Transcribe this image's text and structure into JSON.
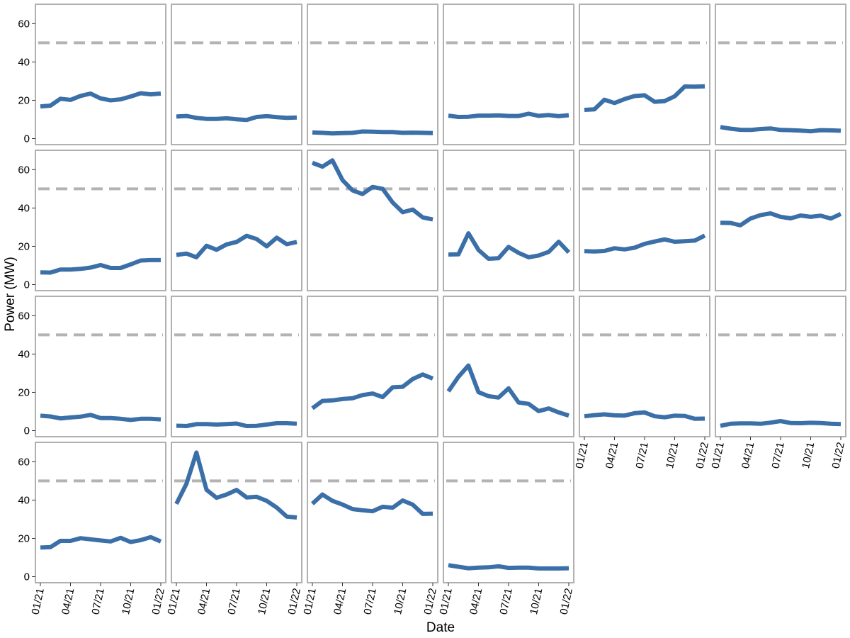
{
  "chart_data": {
    "type": "line",
    "layout": "small-multiples",
    "xlabel": "Date",
    "ylabel": "Power (MW)",
    "ylim": [
      0,
      67
    ],
    "yticks": [
      0,
      20,
      40,
      60
    ],
    "xticks": [
      "2021-01",
      "2021-04",
      "2021-07",
      "2021-10",
      "2022-01"
    ],
    "xtick_labels": [
      "01/21",
      "04/21",
      "07/21",
      "10/21",
      "01/22"
    ],
    "x": [
      "2021-01",
      "2021-02",
      "2021-03",
      "2021-04",
      "2021-05",
      "2021-06",
      "2021-07",
      "2021-08",
      "2021-09",
      "2021-10",
      "2021-11",
      "2021-12",
      "2022-01"
    ],
    "reference_line": 50,
    "colors": {
      "series": "#3b6fa8",
      "reference": "#b3b3b3",
      "border": "#b0b0b0"
    },
    "grid": false,
    "panels": [
      {
        "values": [
          16.8,
          17.2,
          20.8,
          20.2,
          22.3,
          23.5,
          21.0,
          20.0,
          20.5,
          22.0,
          23.7,
          23.1,
          23.5
        ]
      },
      {
        "values": [
          11.5,
          11.8,
          10.8,
          10.3,
          10.3,
          10.6,
          10.1,
          9.7,
          11.3,
          11.7,
          11.2,
          10.8,
          11.0
        ]
      },
      {
        "values": [
          3.2,
          3.0,
          2.7,
          2.9,
          3.0,
          3.7,
          3.6,
          3.4,
          3.4,
          3.0,
          3.1,
          3.0,
          2.9
        ]
      },
      {
        "values": [
          12.0,
          11.3,
          11.4,
          12.0,
          12.0,
          12.1,
          11.8,
          11.8,
          13.0,
          11.9,
          12.3,
          11.7,
          12.2
        ]
      },
      {
        "values": [
          15.0,
          15.3,
          20.3,
          18.6,
          20.6,
          22.2,
          22.6,
          19.2,
          19.6,
          22.1,
          27.2,
          27.1,
          27.3
        ]
      },
      {
        "values": [
          6.0,
          5.2,
          4.6,
          4.5,
          5.0,
          5.3,
          4.5,
          4.4,
          4.2,
          3.8,
          4.4,
          4.3,
          4.1
        ]
      },
      {
        "values": [
          6.4,
          6.3,
          7.9,
          7.9,
          8.2,
          8.9,
          10.2,
          8.7,
          8.7,
          10.6,
          12.6,
          12.8,
          12.8
        ]
      },
      {
        "values": [
          15.5,
          16.2,
          14.3,
          20.3,
          18.2,
          21.0,
          22.3,
          25.5,
          23.8,
          20.0,
          24.5,
          21.1,
          22.3
        ]
      },
      {
        "values": [
          63.6,
          61.6,
          64.9,
          54.6,
          49.2,
          47.3,
          51.0,
          50.0,
          42.9,
          37.8,
          39.2,
          35.1,
          34.0
        ]
      },
      {
        "values": [
          15.7,
          15.8,
          26.8,
          18.1,
          13.5,
          13.8,
          19.7,
          16.6,
          14.3,
          15.2,
          17.1,
          22.4,
          16.8
        ]
      },
      {
        "values": [
          17.5,
          17.3,
          17.6,
          19.0,
          18.4,
          19.3,
          21.3,
          22.5,
          23.6,
          22.4,
          22.7,
          23.0,
          25.6
        ]
      },
      {
        "values": [
          32.3,
          32.2,
          31.0,
          34.5,
          36.3,
          37.2,
          35.4,
          34.6,
          36.1,
          35.4,
          36.0,
          34.5,
          36.9
        ]
      },
      {
        "values": [
          7.8,
          7.4,
          6.4,
          6.9,
          7.3,
          8.2,
          6.6,
          6.6,
          6.2,
          5.6,
          6.2,
          6.2,
          5.9
        ]
      },
      {
        "values": [
          2.6,
          2.4,
          3.4,
          3.4,
          3.2,
          3.4,
          3.7,
          2.4,
          2.5,
          3.2,
          3.9,
          3.9,
          3.6
        ]
      },
      {
        "values": [
          11.7,
          15.5,
          15.8,
          16.5,
          16.9,
          18.6,
          19.4,
          17.5,
          22.6,
          22.9,
          27.0,
          29.3,
          27.2
        ]
      },
      {
        "values": [
          20.5,
          28.1,
          34.0,
          20.1,
          18.0,
          17.3,
          22.1,
          14.7,
          14.0,
          10.2,
          11.6,
          9.5,
          7.9
        ]
      },
      {
        "values": [
          7.5,
          8.1,
          8.5,
          8.0,
          7.9,
          9.1,
          9.5,
          7.5,
          7.0,
          7.8,
          7.7,
          6.2,
          6.3
        ]
      },
      {
        "values": [
          2.5,
          3.6,
          3.8,
          3.8,
          3.6,
          4.2,
          5.0,
          4.0,
          3.9,
          4.1,
          4.0,
          3.6,
          3.4
        ]
      },
      {
        "values": [
          15.2,
          15.4,
          18.7,
          18.7,
          20.1,
          19.5,
          18.9,
          18.4,
          20.3,
          18.1,
          19.1,
          20.6,
          18.4
        ]
      },
      {
        "values": [
          38.0,
          48.5,
          64.8,
          45.4,
          41.2,
          42.9,
          45.3,
          41.4,
          41.7,
          39.6,
          36.1,
          31.4,
          30.9
        ]
      },
      {
        "values": [
          38.1,
          42.9,
          39.6,
          37.7,
          35.3,
          34.7,
          34.2,
          36.5,
          36.0,
          39.8,
          37.6,
          32.8,
          32.9
        ]
      },
      {
        "values": [
          6.0,
          5.2,
          4.4,
          4.7,
          4.9,
          5.4,
          4.6,
          4.7,
          4.7,
          4.3,
          4.3,
          4.3,
          4.4
        ]
      }
    ]
  }
}
